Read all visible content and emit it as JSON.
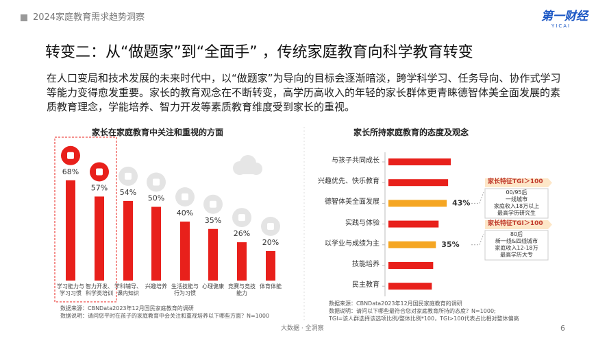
{
  "header": {
    "title": "2024家庭教育需求趋势洞察",
    "logo": "第一财经",
    "logo_sub": "YICAI"
  },
  "title": "转变二：从“做题家”到“全面手” ，传统家庭教育向科学教育转变",
  "paragraph": "在人口变局和技术发展的未来时代中，以“做题家”为导向的目标会逐渐暗淡，跨学科学习、任务导向、协作式学习等能力变得愈发重要。家长的教育观念在不断转变，高学历高收入的年轻的家长群体更青睐德智体美全面发展的素质教育理念，学能培养、智力开发等素质教育维度受到家长的重视。",
  "chart_data": [
    {
      "type": "bar",
      "title": "家长在家庭教育中关注和重视的方面",
      "categories": [
        "学习能力与\n学习习惯",
        "智力开发、\n科学类培训",
        "学科辅导、\n课内知识",
        "兴趣培养",
        "生活技能与\n行为习惯",
        "心理健康",
        "竞赛与竞技\n能力",
        "体育体能"
      ],
      "values": [
        68,
        57,
        54,
        50,
        40,
        35,
        26,
        20
      ],
      "value_labels": [
        "68%",
        "57%",
        "54%",
        "50%",
        "40%",
        "35%",
        "26%",
        "20%"
      ],
      "color": "#e8201b",
      "source": "数据来源：CBNData2023年12月国民家庭教育的调研\n数据说明：请问您平时在孩子的家庭教育中会关注和重视培养以下哪些方面？N=1000"
    },
    {
      "type": "barh",
      "title": "家长所持家庭教育的态度及观念",
      "categories": [
        "与孩子共同成长",
        "兴趣优先、快乐教育",
        "德智体美全面发展",
        "实践与体验",
        "以学业与成绩为主",
        "技能培养",
        "民主教育"
      ],
      "values": [
        46,
        44,
        43,
        37,
        35,
        33,
        32
      ],
      "value_labels": [
        null,
        null,
        "43%",
        null,
        "35%",
        null,
        null
      ],
      "colors": [
        "#e8201b",
        "#e8201b",
        "#f5a623",
        "#e8201b",
        "#f5a623",
        "#e8201b",
        "#e8201b"
      ],
      "callouts": [
        {
          "title": "家长特征TGI＞100",
          "lines": [
            "00/95后",
            "一线城市",
            "家庭收入18万以上",
            "最高学历研究生"
          ]
        },
        {
          "title": "家长特征TGI＞100",
          "lines": [
            "80后",
            "新一线&四线城市",
            "家庭收入12-18万",
            "最高学历大专"
          ]
        }
      ],
      "source": "数据来源：CBNData2023年12月国民家庭教育的调研\n数据说明：请问以下哪些最符合您对家庭教育所持的态度？N=1000;\nTGI=该人群选择该选项比例/整体比例*100，TGI>100代表占比相对整体偏高"
    }
  ],
  "footer": {
    "text": "大数据 · 全洞察",
    "page": "6"
  }
}
